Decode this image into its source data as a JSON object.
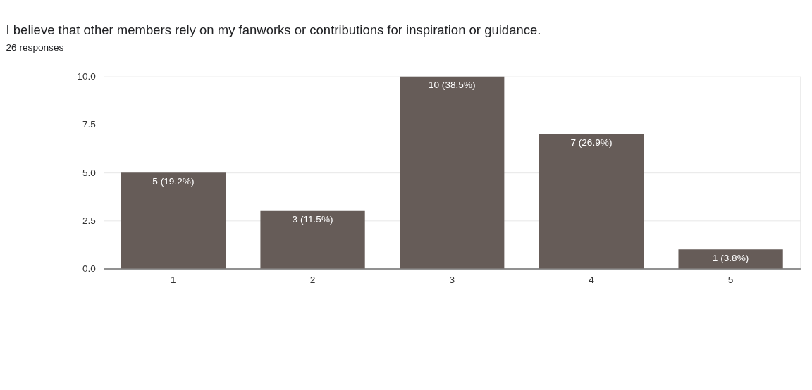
{
  "chart_data": {
    "type": "bar",
    "title": "I believe that other members rely on my fanworks or contributions for inspiration or guidance.",
    "subtitle": "26 responses",
    "categories": [
      "1",
      "2",
      "3",
      "4",
      "5"
    ],
    "values": [
      5,
      3,
      10,
      7,
      1
    ],
    "value_labels": [
      "5 (19.2%)",
      "3 (11.5%)",
      "10 (38.5%)",
      "7 (26.9%)",
      "1 (3.8%)"
    ],
    "color": "#665c58",
    "ylim": [
      0,
      10
    ],
    "yticks": [
      {
        "value": 0,
        "label": "0.0"
      },
      {
        "value": 2.5,
        "label": "2.5"
      },
      {
        "value": 5,
        "label": "5.0"
      },
      {
        "value": 7.5,
        "label": "7.5"
      },
      {
        "value": 10,
        "label": "10.0"
      }
    ],
    "grid": "y"
  }
}
